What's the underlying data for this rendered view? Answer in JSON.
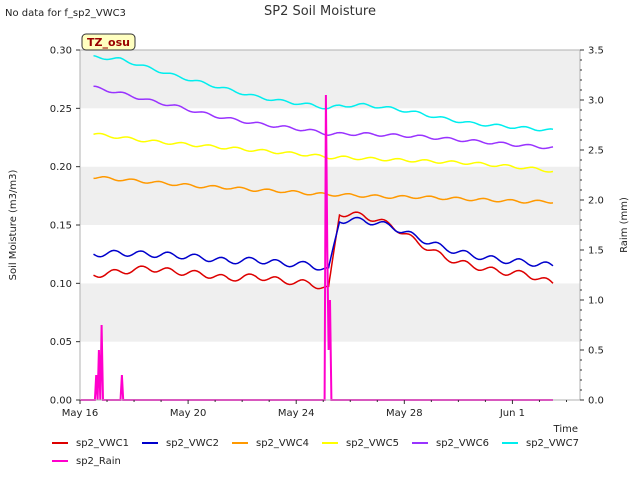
{
  "page": {
    "no_data_note": "No data for f_sp2_VWC3"
  },
  "chart_data": {
    "type": "line",
    "title": "SP2 Soil Moisture",
    "xlabel": "Time",
    "ylabel": "Soil Moisture (m3/m3)",
    "y2label": "Raim (mm)",
    "site_badge": "TZ_osu",
    "xlim": [
      "2024-05-16",
      "2024-06-03"
    ],
    "x_ticks": [
      "May 16",
      "May 20",
      "May 24",
      "May 28",
      "Jun 1"
    ],
    "ylim": [
      0.0,
      0.3
    ],
    "y_ticks": [
      "0.00",
      "0.05",
      "0.10",
      "0.15",
      "0.20",
      "0.25",
      "0.30"
    ],
    "y2lim": [
      0.0,
      3.5
    ],
    "y2_ticks": [
      "0.0",
      "0.5",
      "1.0",
      "1.5",
      "2.0",
      "2.5",
      "3.0",
      "3.5"
    ],
    "grid_bands": true,
    "legend_position": "bottom",
    "x": [
      "May 16.5",
      "May 17.5",
      "May 18.5",
      "May 19.5",
      "May 20.5",
      "May 21.5",
      "May 22.5",
      "May 23.5",
      "May 24.5",
      "May 25.2",
      "May 25.6",
      "May 26.5",
      "May 27.5",
      "May 28.5",
      "May 29.5",
      "May 30.5",
      "May 31.5",
      "Jun 1.5",
      "Jun 2.5"
    ],
    "x_days": [
      0.5,
      1.5,
      2.5,
      3.5,
      4.5,
      5.5,
      6.5,
      7.5,
      8.5,
      9.2,
      9.6,
      10.5,
      11.5,
      12.5,
      13.5,
      14.5,
      15.5,
      16.5,
      17.5
    ],
    "series": [
      {
        "name": "sp2_VWC1",
        "color": "#dd0000",
        "axis": "left",
        "values": [
          0.107,
          0.11,
          0.113,
          0.11,
          0.108,
          0.104,
          0.106,
          0.102,
          0.1,
          0.095,
          0.16,
          0.158,
          0.15,
          0.135,
          0.122,
          0.115,
          0.11,
          0.108,
          0.1
        ]
      },
      {
        "name": "sp2_VWC2",
        "color": "#0000cc",
        "axis": "left",
        "values": [
          0.125,
          0.126,
          0.125,
          0.124,
          0.122,
          0.119,
          0.12,
          0.117,
          0.116,
          0.111,
          0.154,
          0.154,
          0.149,
          0.139,
          0.13,
          0.124,
          0.12,
          0.118,
          0.115
        ]
      },
      {
        "name": "sp2_VWC4",
        "color": "#ff9900",
        "axis": "left",
        "values": [
          0.191,
          0.189,
          0.187,
          0.185,
          0.183,
          0.182,
          0.18,
          0.179,
          0.177,
          0.176,
          0.176,
          0.175,
          0.174,
          0.174,
          0.173,
          0.172,
          0.171,
          0.17,
          0.17
        ]
      },
      {
        "name": "sp2_VWC5",
        "color": "#ffff00",
        "axis": "left",
        "values": [
          0.228,
          0.225,
          0.222,
          0.22,
          0.218,
          0.216,
          0.214,
          0.212,
          0.21,
          0.208,
          0.208,
          0.207,
          0.206,
          0.205,
          0.204,
          0.203,
          0.201,
          0.199,
          0.196
        ]
      },
      {
        "name": "sp2_VWC6",
        "color": "#9933ff",
        "axis": "left",
        "values": [
          0.268,
          0.263,
          0.257,
          0.252,
          0.246,
          0.241,
          0.237,
          0.234,
          0.231,
          0.228,
          0.228,
          0.228,
          0.227,
          0.226,
          0.224,
          0.222,
          0.22,
          0.218,
          0.216
        ]
      },
      {
        "name": "sp2_VWC7",
        "color": "#00eeee",
        "axis": "left",
        "values": [
          0.294,
          0.292,
          0.285,
          0.278,
          0.272,
          0.266,
          0.26,
          0.256,
          0.253,
          0.25,
          0.252,
          0.253,
          0.25,
          0.246,
          0.241,
          0.237,
          0.235,
          0.233,
          0.231
        ]
      }
    ],
    "rain_series": {
      "name": "sp2_Rain",
      "color": "#ff00cc",
      "axis": "right",
      "x_days": [
        0.0,
        0.55,
        0.6,
        0.65,
        0.7,
        0.75,
        0.8,
        0.85,
        0.9,
        1.5,
        1.55,
        1.6,
        9.05,
        9.1,
        9.15,
        9.2,
        9.25,
        9.3,
        9.35,
        17.5
      ],
      "values": [
        0.0,
        0.0,
        0.25,
        0.0,
        0.5,
        0.0,
        0.75,
        0.0,
        0.0,
        0.0,
        0.25,
        0.0,
        0.0,
        3.05,
        1.5,
        0.5,
        1.0,
        0.0,
        0.0,
        0.0
      ]
    }
  }
}
